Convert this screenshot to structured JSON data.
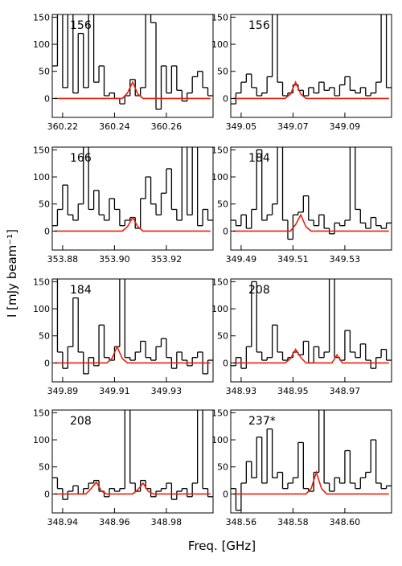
{
  "y_label": "I [mJy beam⁻¹]",
  "x_label": "Freq. [GHz]",
  "chart_data": [
    {
      "type": "line",
      "annotation": "156",
      "drawstyle": "steps-mid",
      "xlim": [
        360.216,
        360.278
      ],
      "xticks": [
        360.22,
        360.24,
        360.26
      ],
      "ylim": [
        -35,
        155
      ],
      "yticks": [
        0,
        50,
        100,
        150
      ],
      "x": [
        360.217,
        360.219,
        360.221,
        360.223,
        360.225,
        360.227,
        360.229,
        360.231,
        360.233,
        360.235,
        360.237,
        360.239,
        360.241,
        360.243,
        360.245,
        360.247,
        360.249,
        360.251,
        360.253,
        360.255,
        360.257,
        360.259,
        360.261,
        360.263,
        360.265,
        360.267,
        360.269,
        360.271,
        360.273,
        360.275,
        360.277
      ],
      "series": [
        {
          "color": "#000000",
          "values": [
            60,
            170,
            20,
            170,
            10,
            120,
            20,
            170,
            30,
            60,
            5,
            10,
            0,
            -10,
            5,
            35,
            5,
            20,
            170,
            140,
            -20,
            60,
            10,
            60,
            15,
            -5,
            10,
            40,
            50,
            20,
            5
          ]
        },
        {
          "color": "#e8200c",
          "values": [
            0,
            0,
            0,
            0,
            0,
            0,
            0,
            0,
            0,
            0,
            0,
            0,
            0,
            0,
            10,
            30,
            8,
            0,
            0,
            0,
            0,
            0,
            0,
            0,
            0,
            0,
            0,
            0,
            0,
            0,
            0
          ]
        }
      ]
    },
    {
      "type": "line",
      "annotation": "156",
      "drawstyle": "steps-mid",
      "xlim": [
        349.046,
        349.108
      ],
      "xticks": [
        349.05,
        349.07,
        349.09
      ],
      "ylim": [
        -35,
        155
      ],
      "yticks": [
        0,
        50,
        100,
        150
      ],
      "x": [
        349.047,
        349.049,
        349.051,
        349.053,
        349.055,
        349.057,
        349.059,
        349.061,
        349.063,
        349.065,
        349.067,
        349.069,
        349.071,
        349.073,
        349.075,
        349.077,
        349.079,
        349.081,
        349.083,
        349.085,
        349.087,
        349.089,
        349.091,
        349.093,
        349.095,
        349.097,
        349.099,
        349.101,
        349.103,
        349.105,
        349.107
      ],
      "series": [
        {
          "color": "#000000",
          "values": [
            -10,
            10,
            30,
            45,
            20,
            5,
            10,
            40,
            170,
            30,
            5,
            10,
            25,
            15,
            5,
            20,
            10,
            30,
            15,
            20,
            5,
            25,
            40,
            15,
            10,
            20,
            5,
            10,
            30,
            170,
            20
          ]
        },
        {
          "color": "#e8200c",
          "values": [
            0,
            0,
            0,
            0,
            0,
            0,
            0,
            0,
            0,
            0,
            0,
            8,
            30,
            8,
            0,
            0,
            0,
            0,
            0,
            0,
            0,
            0,
            0,
            0,
            0,
            0,
            0,
            0,
            0,
            0,
            0
          ]
        }
      ]
    },
    {
      "type": "line",
      "annotation": "166",
      "drawstyle": "steps-mid",
      "xlim": [
        353.876,
        353.938
      ],
      "xticks": [
        353.88,
        {
          "value": 353.9,
          "label": "353.90"
        },
        353.92
      ],
      "ylim": [
        -35,
        155
      ],
      "yticks": [
        0,
        50,
        100,
        150
      ],
      "x": [
        353.877,
        353.879,
        353.881,
        353.883,
        353.885,
        353.887,
        353.889,
        353.891,
        353.893,
        353.895,
        353.897,
        353.899,
        353.901,
        353.903,
        353.905,
        353.907,
        353.909,
        353.911,
        353.913,
        353.915,
        353.917,
        353.919,
        353.921,
        353.923,
        353.925,
        353.927,
        353.929,
        353.931,
        353.933,
        353.935,
        353.937
      ],
      "series": [
        {
          "color": "#000000",
          "values": [
            10,
            40,
            85,
            30,
            20,
            50,
            170,
            40,
            75,
            30,
            20,
            60,
            40,
            10,
            20,
            25,
            5,
            60,
            100,
            50,
            30,
            70,
            115,
            40,
            20,
            170,
            30,
            170,
            10,
            40,
            20
          ]
        },
        {
          "color": "#e8200c",
          "values": [
            0,
            0,
            0,
            0,
            0,
            0,
            0,
            0,
            0,
            0,
            0,
            0,
            0,
            0,
            8,
            25,
            8,
            0,
            0,
            0,
            0,
            0,
            0,
            0,
            0,
            0,
            0,
            0,
            0,
            0,
            0
          ]
        }
      ]
    },
    {
      "type": "line",
      "annotation": "184",
      "drawstyle": "steps-mid",
      "xlim": [
        349.486,
        349.548
      ],
      "xticks": [
        349.49,
        349.51,
        349.53
      ],
      "ylim": [
        -35,
        155
      ],
      "yticks": [
        0,
        50,
        100,
        150
      ],
      "x": [
        349.487,
        349.489,
        349.491,
        349.493,
        349.495,
        349.497,
        349.499,
        349.501,
        349.503,
        349.505,
        349.507,
        349.509,
        349.511,
        349.513,
        349.515,
        349.517,
        349.519,
        349.521,
        349.523,
        349.525,
        349.527,
        349.529,
        349.531,
        349.533,
        349.535,
        349.537,
        349.539,
        349.541,
        349.543,
        349.545,
        349.547
      ],
      "series": [
        {
          "color": "#000000",
          "values": [
            20,
            10,
            30,
            5,
            40,
            150,
            20,
            30,
            50,
            170,
            20,
            -15,
            30,
            35,
            65,
            20,
            10,
            30,
            5,
            -5,
            15,
            10,
            20,
            170,
            40,
            15,
            5,
            25,
            10,
            5,
            15
          ]
        },
        {
          "color": "#e8200c",
          "values": [
            0,
            0,
            0,
            0,
            0,
            0,
            0,
            0,
            0,
            0,
            0,
            0,
            12,
            30,
            8,
            0,
            0,
            0,
            0,
            0,
            0,
            0,
            0,
            0,
            0,
            0,
            0,
            0,
            0,
            0,
            0
          ]
        }
      ]
    },
    {
      "type": "line",
      "annotation": "184",
      "drawstyle": "steps-mid",
      "xlim": [
        349.886,
        349.948
      ],
      "xticks": [
        349.89,
        349.91,
        349.93
      ],
      "ylim": [
        -35,
        155
      ],
      "yticks": [
        0,
        50,
        100,
        150
      ],
      "x": [
        349.887,
        349.889,
        349.891,
        349.893,
        349.895,
        349.897,
        349.899,
        349.901,
        349.903,
        349.905,
        349.907,
        349.909,
        349.911,
        349.913,
        349.915,
        349.917,
        349.919,
        349.921,
        349.923,
        349.925,
        349.927,
        349.929,
        349.931,
        349.933,
        349.935,
        349.937,
        349.939,
        349.941,
        349.943,
        349.945,
        349.947
      ],
      "series": [
        {
          "color": "#000000",
          "values": [
            170,
            20,
            -10,
            30,
            120,
            20,
            -20,
            10,
            -5,
            70,
            10,
            5,
            30,
            170,
            10,
            5,
            20,
            40,
            10,
            5,
            30,
            45,
            10,
            -10,
            20,
            5,
            -5,
            10,
            20,
            -20,
            5
          ]
        },
        {
          "color": "#e8200c",
          "values": [
            0,
            0,
            0,
            0,
            0,
            0,
            0,
            0,
            0,
            0,
            0,
            8,
            30,
            8,
            0,
            0,
            0,
            0,
            0,
            0,
            0,
            0,
            0,
            0,
            0,
            0,
            0,
            0,
            0,
            0,
            0
          ]
        }
      ]
    },
    {
      "type": "line",
      "annotation": "208",
      "drawstyle": "steps-mid",
      "xlim": [
        348.926,
        348.988
      ],
      "xticks": [
        348.93,
        348.95,
        348.97
      ],
      "ylim": [
        -35,
        155
      ],
      "yticks": [
        0,
        50,
        100,
        150
      ],
      "x": [
        348.927,
        348.929,
        348.931,
        348.933,
        348.935,
        348.937,
        348.939,
        348.941,
        348.943,
        348.945,
        348.947,
        348.949,
        348.951,
        348.953,
        348.955,
        348.957,
        348.959,
        348.961,
        348.963,
        348.965,
        348.967,
        348.969,
        348.971,
        348.973,
        348.975,
        348.977,
        348.979,
        348.981,
        348.983,
        348.985,
        348.987
      ],
      "series": [
        {
          "color": "#000000",
          "values": [
            -5,
            10,
            -10,
            30,
            150,
            20,
            5,
            10,
            70,
            20,
            5,
            10,
            20,
            15,
            40,
            0,
            30,
            10,
            20,
            170,
            10,
            5,
            60,
            20,
            10,
            35,
            5,
            -10,
            10,
            25,
            5
          ]
        },
        {
          "color": "#e8200c",
          "values": [
            0,
            0,
            0,
            0,
            0,
            0,
            0,
            0,
            0,
            0,
            0,
            8,
            25,
            10,
            0,
            0,
            0,
            0,
            0,
            0,
            15,
            0,
            0,
            0,
            0,
            0,
            0,
            0,
            0,
            0,
            0
          ]
        }
      ]
    },
    {
      "type": "line",
      "annotation": "208",
      "drawstyle": "steps-mid",
      "xlim": [
        348.936,
        348.998
      ],
      "xticks": [
        348.94,
        348.96,
        348.98
      ],
      "ylim": [
        -35,
        155
      ],
      "yticks": [
        0,
        50,
        100,
        150
      ],
      "x": [
        348.937,
        348.939,
        348.941,
        348.943,
        348.945,
        348.947,
        348.949,
        348.951,
        348.953,
        348.955,
        348.957,
        348.959,
        348.961,
        348.963,
        348.965,
        348.967,
        348.969,
        348.971,
        348.973,
        348.975,
        348.977,
        348.979,
        348.981,
        348.983,
        348.985,
        348.987,
        348.989,
        348.991,
        348.993,
        348.995,
        348.997
      ],
      "series": [
        {
          "color": "#000000",
          "values": [
            30,
            10,
            -10,
            5,
            15,
            0,
            10,
            20,
            25,
            5,
            -5,
            10,
            5,
            10,
            160,
            20,
            5,
            25,
            10,
            -5,
            5,
            10,
            20,
            -10,
            5,
            10,
            -5,
            20,
            165,
            10,
            -5
          ]
        },
        {
          "color": "#e8200c",
          "values": [
            0,
            0,
            0,
            0,
            0,
            0,
            0,
            10,
            22,
            5,
            0,
            0,
            0,
            0,
            0,
            0,
            8,
            20,
            5,
            0,
            0,
            0,
            0,
            0,
            0,
            0,
            0,
            0,
            0,
            0,
            0
          ]
        }
      ]
    },
    {
      "type": "line",
      "annotation": "237*",
      "drawstyle": "steps-mid",
      "xlim": [
        348.556,
        348.618
      ],
      "xticks": [
        348.56,
        348.58,
        {
          "value": 348.6,
          "label": "348.60"
        }
      ],
      "ylim": [
        -35,
        155
      ],
      "yticks": [
        0,
        50,
        100,
        150
      ],
      "x": [
        348.557,
        348.559,
        348.561,
        348.563,
        348.565,
        348.567,
        348.569,
        348.571,
        348.573,
        348.575,
        348.577,
        348.579,
        348.581,
        348.583,
        348.585,
        348.587,
        348.589,
        348.591,
        348.593,
        348.595,
        348.597,
        348.599,
        348.601,
        348.603,
        348.605,
        348.607,
        348.609,
        348.611,
        348.613,
        348.615,
        348.617
      ],
      "series": [
        {
          "color": "#000000",
          "values": [
            10,
            -30,
            20,
            60,
            30,
            105,
            20,
            120,
            30,
            40,
            10,
            20,
            30,
            95,
            10,
            5,
            40,
            170,
            20,
            5,
            30,
            20,
            80,
            20,
            10,
            30,
            40,
            100,
            20,
            10,
            15
          ]
        },
        {
          "color": "#e8200c",
          "values": [
            0,
            0,
            0,
            0,
            0,
            0,
            0,
            0,
            0,
            0,
            0,
            0,
            0,
            0,
            0,
            10,
            40,
            10,
            0,
            0,
            0,
            0,
            0,
            0,
            0,
            0,
            0,
            0,
            0,
            0,
            0
          ]
        }
      ]
    }
  ]
}
